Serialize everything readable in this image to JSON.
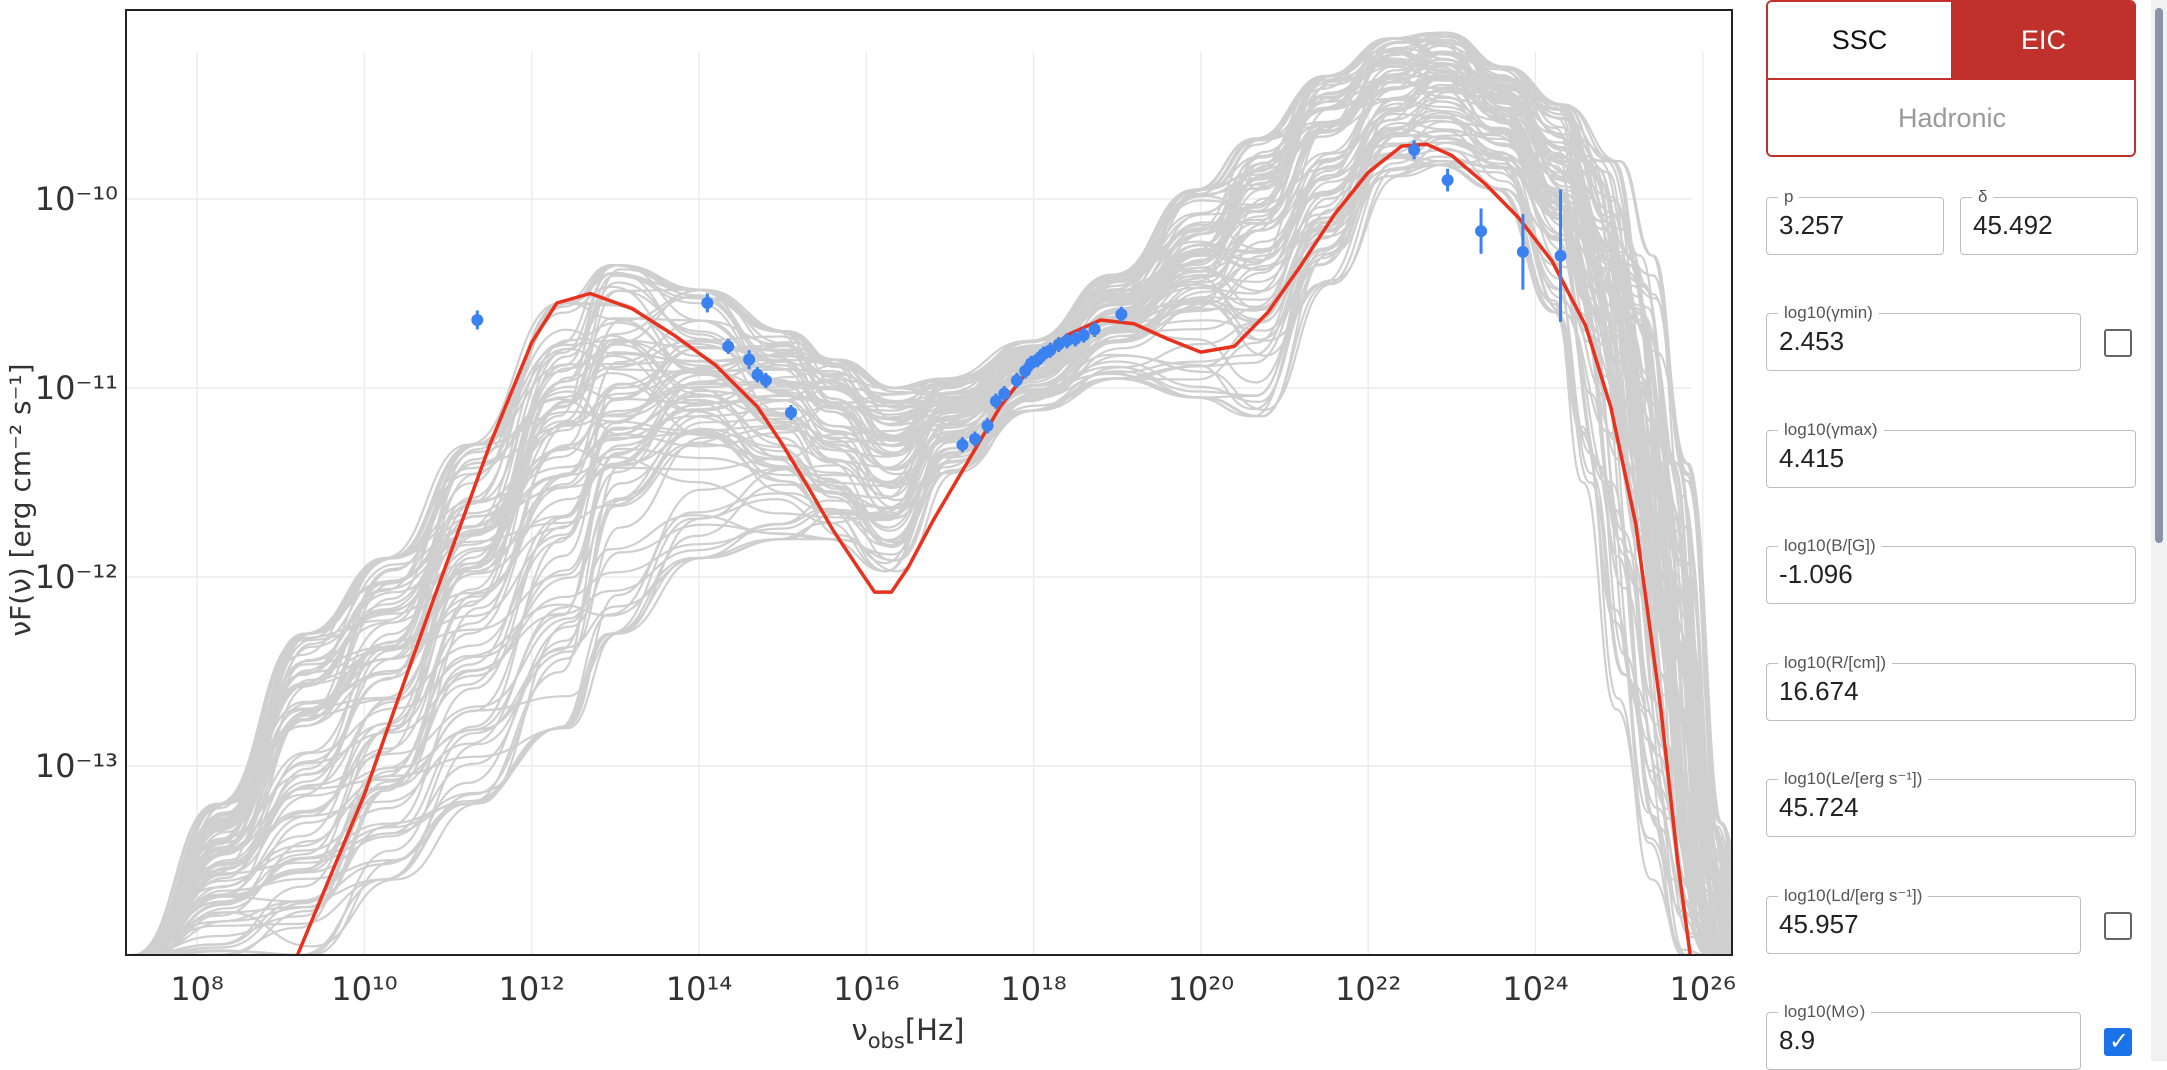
{
  "model_tabs": {
    "ssc": "SSC",
    "eic": "EIC",
    "hadronic": "Hadronic",
    "active": "EIC"
  },
  "params": [
    {
      "id": "p",
      "label": "p",
      "value": "3.257"
    },
    {
      "id": "delta",
      "label": "δ",
      "value": "45.492"
    },
    {
      "id": "log_gmin",
      "label": "log10(γmin)",
      "value": "2.453",
      "fixed": false
    },
    {
      "id": "log_gmax",
      "label": "log10(γmax)",
      "value": "4.415"
    },
    {
      "id": "log_B",
      "label": "log10(B/[G])",
      "value": "-1.096"
    },
    {
      "id": "log_R",
      "label": "log10(R/[cm])",
      "value": "16.674"
    },
    {
      "id": "log_Le",
      "label": "log10(Le/[erg s⁻¹])",
      "value": "45.724"
    },
    {
      "id": "log_Ld",
      "label": "log10(Ld/[erg s⁻¹])",
      "value": "45.957",
      "fixed": false
    },
    {
      "id": "log_M",
      "label": "log10(M⊙)",
      "value": "8.9",
      "fixed": true
    }
  ],
  "colors": {
    "model_curve": "#e8321e",
    "samples": "#cfcfcf",
    "data_points": "#3b82f0",
    "accent": "#c0312b"
  },
  "chart_data": {
    "type": "scatter",
    "xlabel_main": "ν",
    "xlabel_sub": "obs",
    "xlabel_unit": "[Hz]",
    "ylabel": "νF(ν) [erg cm⁻² s⁻¹]",
    "x_log": true,
    "y_log": true,
    "xlim": [
      7.15,
      26.35
    ],
    "ylim": [
      -14.0,
      -9.0
    ],
    "grid": true,
    "x_ticks": [
      8,
      10,
      12,
      14,
      16,
      18,
      20,
      22,
      24,
      26
    ],
    "x_tick_labels": [
      "10⁸",
      "10¹⁰",
      "10¹²",
      "10¹⁴",
      "10¹⁶",
      "10¹⁸",
      "10²⁰",
      "10²²",
      "10²⁴",
      "10²⁶"
    ],
    "y_ticks": [
      -10,
      -11,
      -12,
      -13
    ],
    "y_tick_labels": [
      "10⁻¹⁰",
      "10⁻¹¹",
      "10⁻¹²",
      "10⁻¹³"
    ],
    "model": {
      "x": [
        9.2,
        10.0,
        10.8,
        11.5,
        12.0,
        12.3,
        12.7,
        13.2,
        13.7,
        14.2,
        14.7,
        15.0,
        15.3,
        15.6,
        15.9,
        16.1,
        16.3,
        16.5,
        16.8,
        17.2,
        17.6,
        18.0,
        18.4,
        18.8,
        19.2,
        19.6,
        20.0,
        20.4,
        20.8,
        21.2,
        21.6,
        22.0,
        22.4,
        22.7,
        23.0,
        23.4,
        23.8,
        24.2,
        24.6,
        24.9,
        25.2,
        25.5,
        25.7,
        25.85
      ],
      "y": [
        -14.0,
        -13.15,
        -12.15,
        -11.3,
        -10.76,
        -10.55,
        -10.5,
        -10.58,
        -10.72,
        -10.88,
        -11.1,
        -11.3,
        -11.52,
        -11.75,
        -11.95,
        -12.08,
        -12.08,
        -11.95,
        -11.7,
        -11.4,
        -11.1,
        -10.87,
        -10.72,
        -10.64,
        -10.66,
        -10.74,
        -10.81,
        -10.78,
        -10.6,
        -10.35,
        -10.08,
        -9.86,
        -9.72,
        -9.71,
        -9.77,
        -9.92,
        -10.1,
        -10.33,
        -10.67,
        -11.1,
        -11.72,
        -12.7,
        -13.5,
        -14.0
      ]
    },
    "data_points": [
      {
        "x": 11.35,
        "y": -10.64,
        "err": 0.05
      },
      {
        "x": 14.1,
        "y": -10.55,
        "err": 0.05
      },
      {
        "x": 14.35,
        "y": -10.78,
        "err": 0.04
      },
      {
        "x": 14.6,
        "y": -10.85,
        "err": 0.05
      },
      {
        "x": 14.7,
        "y": -10.93,
        "err": 0.04
      },
      {
        "x": 14.8,
        "y": -10.96,
        "err": 0.04
      },
      {
        "x": 15.1,
        "y": -11.13,
        "err": 0.04
      },
      {
        "x": 17.15,
        "y": -11.3,
        "err": 0.04
      },
      {
        "x": 17.3,
        "y": -11.27,
        "err": 0.04
      },
      {
        "x": 17.45,
        "y": -11.2,
        "err": 0.04
      },
      {
        "x": 17.55,
        "y": -11.07,
        "err": 0.04
      },
      {
        "x": 17.65,
        "y": -11.03,
        "err": 0.04
      },
      {
        "x": 17.8,
        "y": -10.96,
        "err": 0.04
      },
      {
        "x": 17.9,
        "y": -10.91,
        "err": 0.04
      },
      {
        "x": 17.97,
        "y": -10.87,
        "err": 0.04
      },
      {
        "x": 18.05,
        "y": -10.85,
        "err": 0.04
      },
      {
        "x": 18.12,
        "y": -10.82,
        "err": 0.04
      },
      {
        "x": 18.2,
        "y": -10.8,
        "err": 0.04
      },
      {
        "x": 18.3,
        "y": -10.77,
        "err": 0.04
      },
      {
        "x": 18.4,
        "y": -10.75,
        "err": 0.04
      },
      {
        "x": 18.5,
        "y": -10.74,
        "err": 0.04
      },
      {
        "x": 18.6,
        "y": -10.72,
        "err": 0.04
      },
      {
        "x": 18.73,
        "y": -10.69,
        "err": 0.04
      },
      {
        "x": 19.05,
        "y": -10.61,
        "err": 0.04
      },
      {
        "x": 22.55,
        "y": -9.74,
        "err": 0.05
      },
      {
        "x": 22.95,
        "y": -9.9,
        "err": 0.06
      },
      {
        "x": 23.35,
        "y": -10.17,
        "err": 0.12
      },
      {
        "x": 23.85,
        "y": -10.28,
        "err": 0.2
      },
      {
        "x": 24.3,
        "y": -10.3,
        "err": 0.35
      }
    ],
    "posterior_samples": {
      "count": 90,
      "description_free": true,
      "x_anchors": [
        7.3,
        8.3,
        9.3,
        10.3,
        11.3,
        12.4,
        13.0,
        14.0,
        15.0,
        15.6,
        16.3,
        17.0,
        18.0,
        19.0,
        20.0,
        20.7,
        21.5,
        22.3,
        22.9,
        23.6,
        24.3,
        24.8,
        25.2,
        25.6,
        26.0,
        26.3
      ],
      "y_low": [
        -14.0,
        -14.0,
        -14.0,
        -13.6,
        -13.2,
        -12.8,
        -12.3,
        -11.9,
        -11.8,
        -11.8,
        -11.97,
        -11.45,
        -11.12,
        -10.95,
        -11.05,
        -11.15,
        -10.45,
        -9.88,
        -9.82,
        -9.95,
        -10.6,
        -11.5,
        -12.7,
        -13.6,
        -14.0,
        -14.0
      ],
      "y_high": [
        -14.0,
        -13.2,
        -12.3,
        -11.9,
        -11.3,
        -10.55,
        -10.35,
        -10.48,
        -10.7,
        -10.85,
        -11.0,
        -10.95,
        -10.75,
        -10.4,
        -9.95,
        -9.68,
        -9.35,
        -9.15,
        -9.12,
        -9.3,
        -9.5,
        -9.8,
        -10.3,
        -11.4,
        -13.3,
        -14.0
      ]
    }
  }
}
